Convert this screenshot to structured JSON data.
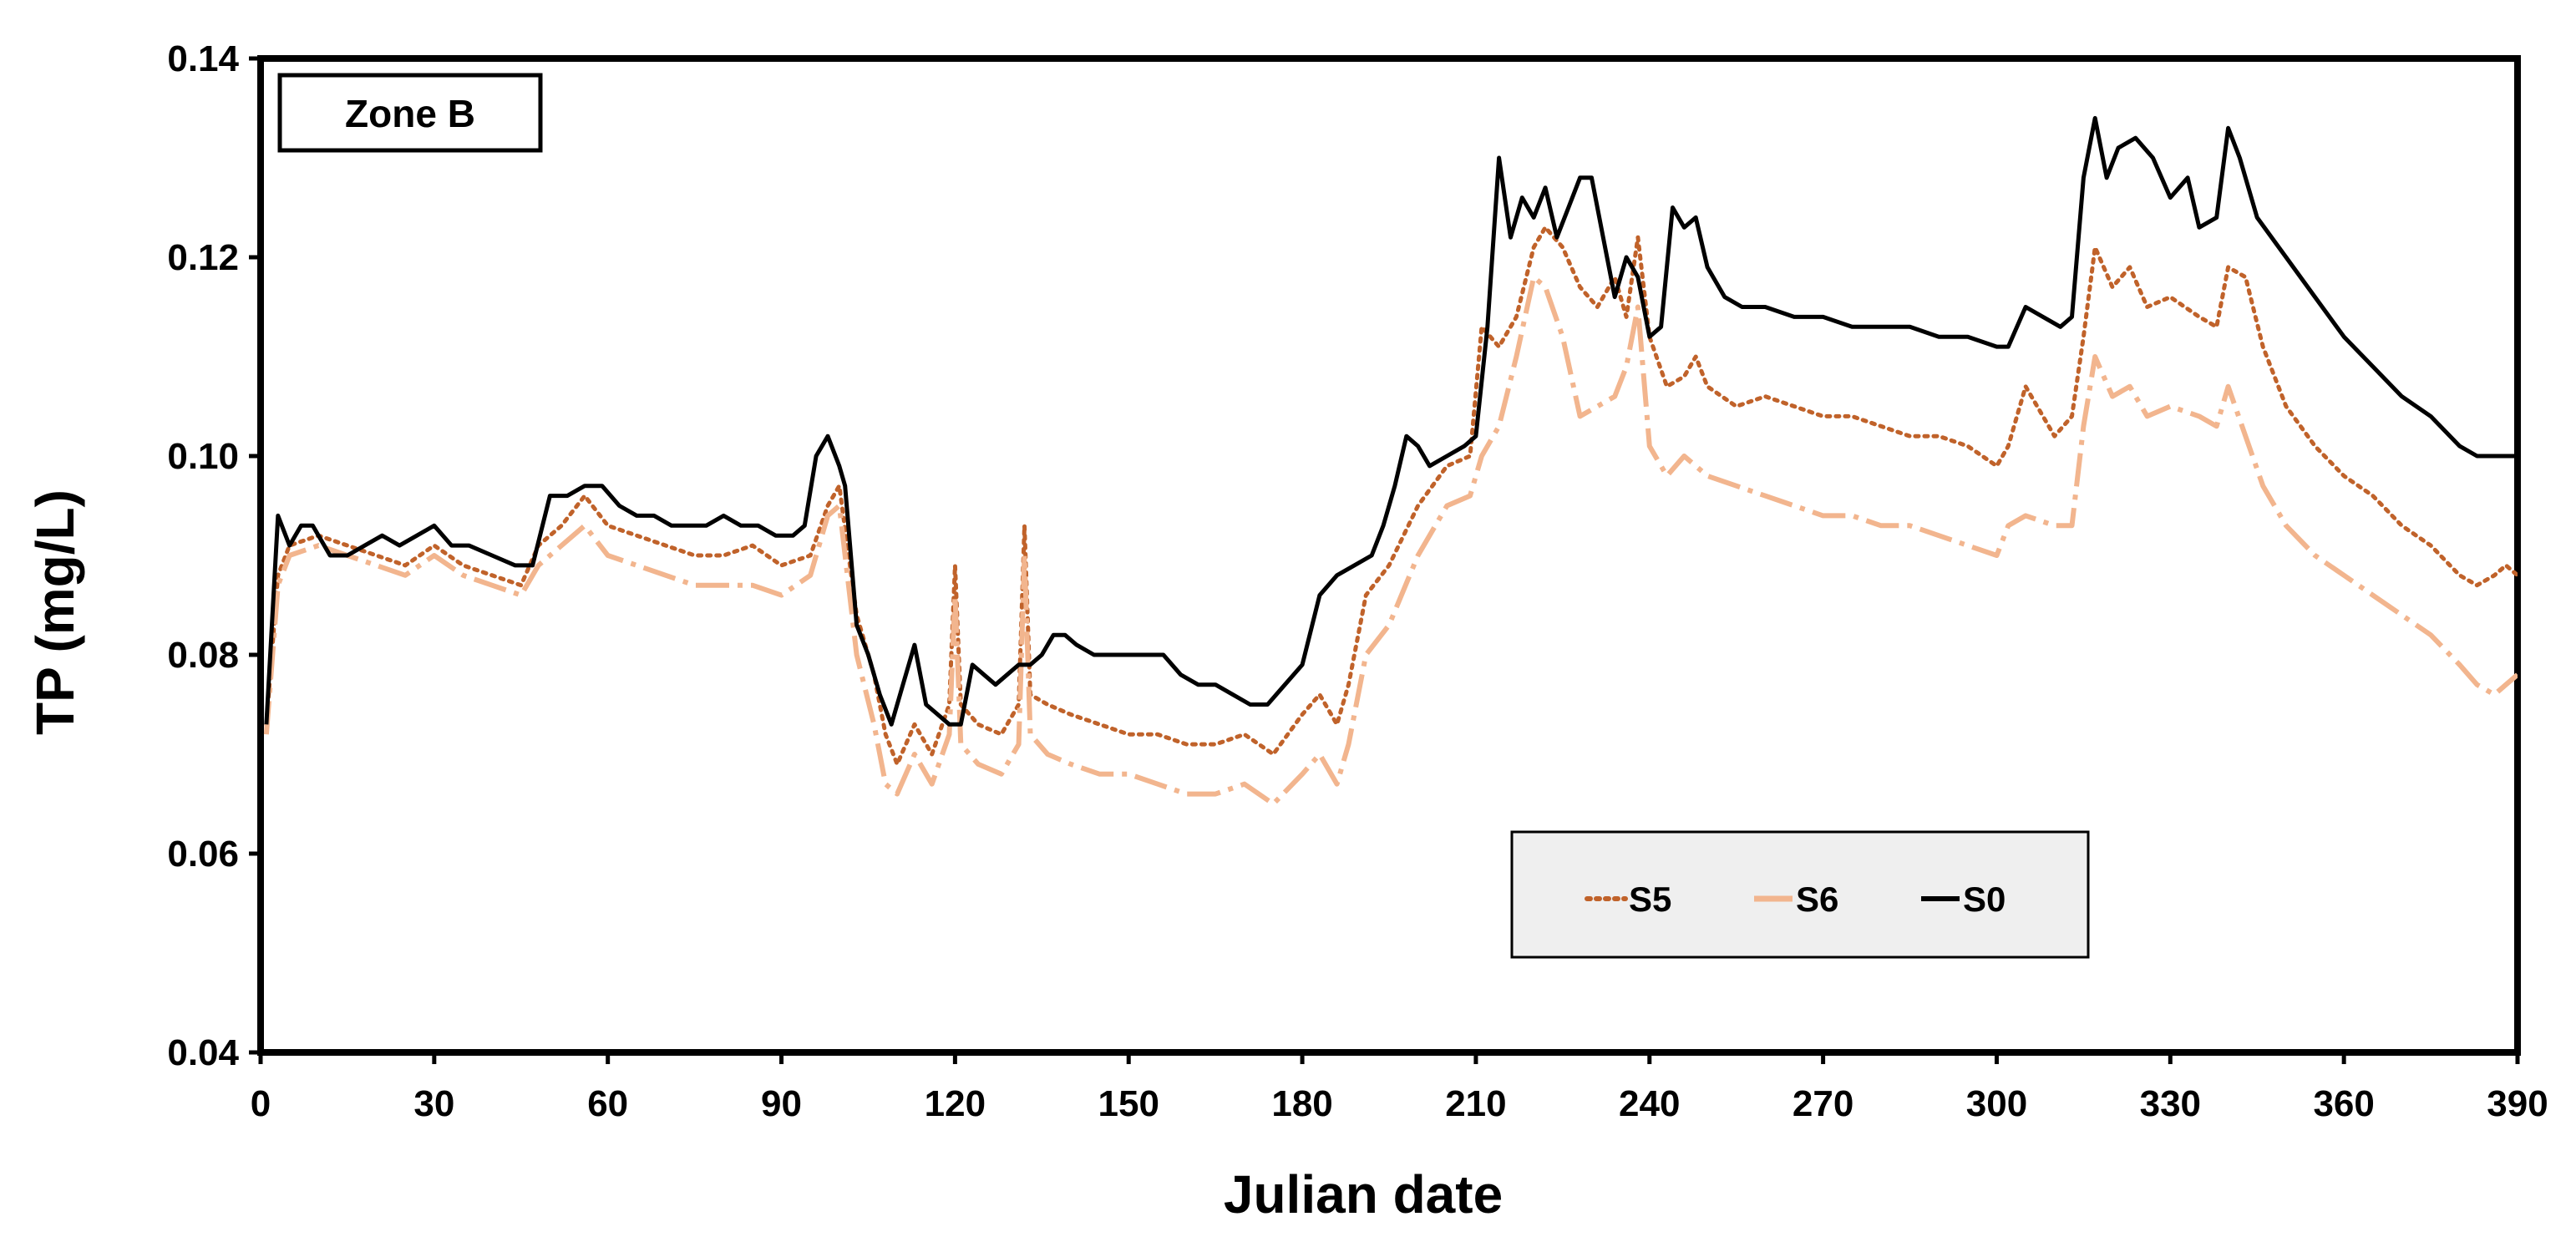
{
  "chart_data": {
    "type": "line",
    "xlabel": "Julian date",
    "ylabel": "TP (mg/L)",
    "annotation": "Zone B",
    "xlim": [
      0,
      390
    ],
    "ylim": [
      0.04,
      0.14
    ],
    "xticks": [
      0,
      30,
      60,
      90,
      120,
      150,
      180,
      210,
      240,
      270,
      300,
      330,
      360,
      390
    ],
    "yticks": [
      "0.04",
      "0.06",
      "0.08",
      "0.10",
      "0.12",
      "0.14"
    ],
    "legend_position": "bottom-right",
    "grid": false,
    "series": [
      {
        "name": "S5",
        "color": "#C0622A",
        "style": "dotted",
        "x": [
          1,
          3,
          5,
          10,
          15,
          20,
          25,
          30,
          35,
          40,
          45,
          48,
          52,
          56,
          60,
          65,
          70,
          75,
          80,
          85,
          90,
          95,
          98,
          100,
          103,
          106,
          108,
          110,
          113,
          116,
          119,
          120,
          121,
          124,
          128,
          131,
          132,
          133,
          136,
          140,
          145,
          150,
          155,
          160,
          165,
          170,
          175,
          180,
          183,
          186,
          188,
          191,
          195,
          200,
          205,
          209,
          211,
          214,
          217,
          220,
          222,
          225,
          228,
          231,
          234,
          236,
          238,
          240,
          243,
          246,
          248,
          250,
          255,
          260,
          265,
          270,
          275,
          280,
          285,
          290,
          295,
          300,
          302,
          305,
          310,
          313,
          315,
          317,
          320,
          323,
          326,
          330,
          335,
          338,
          340,
          343,
          346,
          350,
          355,
          360,
          365,
          370,
          375,
          380,
          383,
          386,
          388,
          390
        ],
        "y": [
          0.073,
          0.088,
          0.091,
          0.092,
          0.091,
          0.09,
          0.089,
          0.091,
          0.089,
          0.088,
          0.087,
          0.091,
          0.093,
          0.096,
          0.093,
          0.092,
          0.091,
          0.09,
          0.09,
          0.091,
          0.089,
          0.09,
          0.095,
          0.097,
          0.084,
          0.078,
          0.072,
          0.069,
          0.073,
          0.07,
          0.075,
          0.089,
          0.075,
          0.073,
          0.072,
          0.075,
          0.093,
          0.076,
          0.075,
          0.074,
          0.073,
          0.072,
          0.072,
          0.071,
          0.071,
          0.072,
          0.07,
          0.074,
          0.076,
          0.073,
          0.077,
          0.086,
          0.089,
          0.095,
          0.099,
          0.1,
          0.113,
          0.111,
          0.114,
          0.121,
          0.123,
          0.121,
          0.117,
          0.115,
          0.118,
          0.114,
          0.122,
          0.112,
          0.107,
          0.108,
          0.11,
          0.107,
          0.105,
          0.106,
          0.105,
          0.104,
          0.104,
          0.103,
          0.102,
          0.102,
          0.101,
          0.099,
          0.101,
          0.107,
          0.102,
          0.104,
          0.112,
          0.121,
          0.117,
          0.119,
          0.115,
          0.116,
          0.114,
          0.113,
          0.119,
          0.118,
          0.111,
          0.105,
          0.101,
          0.098,
          0.096,
          0.093,
          0.091,
          0.088,
          0.087,
          0.088,
          0.089,
          0.088
        ]
      },
      {
        "name": "S6",
        "color": "#F2B58E",
        "style": "dashed",
        "x": [
          1,
          3,
          5,
          10,
          15,
          20,
          25,
          30,
          35,
          40,
          45,
          48,
          52,
          56,
          60,
          65,
          70,
          75,
          80,
          85,
          90,
          95,
          98,
          100,
          103,
          106,
          108,
          110,
          113,
          116,
          119,
          120,
          121,
          124,
          128,
          131,
          132,
          133,
          136,
          140,
          145,
          150,
          155,
          160,
          165,
          170,
          175,
          180,
          183,
          186,
          188,
          191,
          195,
          200,
          205,
          209,
          211,
          214,
          217,
          220,
          222,
          225,
          228,
          231,
          234,
          236,
          238,
          240,
          243,
          246,
          248,
          250,
          255,
          260,
          265,
          270,
          275,
          280,
          285,
          290,
          295,
          300,
          302,
          305,
          310,
          313,
          315,
          317,
          320,
          323,
          326,
          330,
          335,
          338,
          340,
          343,
          346,
          350,
          355,
          360,
          365,
          370,
          375,
          380,
          383,
          386,
          388,
          390
        ],
        "y": [
          0.072,
          0.087,
          0.09,
          0.091,
          0.09,
          0.089,
          0.088,
          0.09,
          0.088,
          0.087,
          0.086,
          0.089,
          0.091,
          0.093,
          0.09,
          0.089,
          0.088,
          0.087,
          0.087,
          0.087,
          0.086,
          0.088,
          0.094,
          0.095,
          0.08,
          0.073,
          0.067,
          0.066,
          0.07,
          0.067,
          0.072,
          0.086,
          0.071,
          0.069,
          0.068,
          0.071,
          0.09,
          0.072,
          0.07,
          0.069,
          0.068,
          0.068,
          0.067,
          0.066,
          0.066,
          0.067,
          0.065,
          0.068,
          0.07,
          0.067,
          0.071,
          0.08,
          0.083,
          0.09,
          0.095,
          0.096,
          0.1,
          0.103,
          0.11,
          0.118,
          0.117,
          0.112,
          0.104,
          0.105,
          0.106,
          0.109,
          0.115,
          0.101,
          0.098,
          0.1,
          0.099,
          0.098,
          0.097,
          0.096,
          0.095,
          0.094,
          0.094,
          0.093,
          0.093,
          0.092,
          0.091,
          0.09,
          0.093,
          0.094,
          0.093,
          0.093,
          0.103,
          0.11,
          0.106,
          0.107,
          0.104,
          0.105,
          0.104,
          0.103,
          0.107,
          0.102,
          0.097,
          0.093,
          0.09,
          0.088,
          0.086,
          0.084,
          0.082,
          0.079,
          0.077,
          0.076,
          0.077,
          0.078
        ]
      },
      {
        "name": "S0",
        "color": "#000000",
        "style": "solid",
        "x": [
          1,
          3,
          5,
          7,
          9,
          12,
          15,
          18,
          21,
          24,
          27,
          30,
          33,
          36,
          40,
          44,
          47,
          50,
          53,
          56,
          59,
          62,
          65,
          68,
          71,
          74,
          77,
          80,
          83,
          86,
          89,
          92,
          94,
          96,
          98,
          100,
          101,
          103,
          105,
          107,
          109,
          111,
          113,
          115,
          117,
          119,
          121,
          123,
          125,
          127,
          129,
          131,
          133,
          135,
          137,
          139,
          141,
          144,
          147,
          150,
          153,
          156,
          159,
          162,
          165,
          168,
          171,
          174,
          177,
          180,
          183,
          186,
          189,
          192,
          194,
          196,
          198,
          200,
          202,
          205,
          208,
          210,
          212,
          214,
          216,
          218,
          220,
          222,
          224,
          226,
          228,
          230,
          232,
          234,
          236,
          238,
          240,
          242,
          244,
          246,
          248,
          250,
          253,
          256,
          260,
          265,
          270,
          275,
          280,
          285,
          290,
          295,
          300,
          302,
          305,
          308,
          311,
          313,
          315,
          317,
          319,
          321,
          324,
          327,
          330,
          333,
          335,
          338,
          340,
          342,
          345,
          350,
          355,
          360,
          365,
          370,
          375,
          380,
          383,
          386,
          388,
          390
        ],
        "y": [
          0.073,
          0.094,
          0.091,
          0.093,
          0.093,
          0.09,
          0.09,
          0.091,
          0.092,
          0.091,
          0.092,
          0.093,
          0.091,
          0.091,
          0.09,
          0.089,
          0.089,
          0.096,
          0.096,
          0.097,
          0.097,
          0.095,
          0.094,
          0.094,
          0.093,
          0.093,
          0.093,
          0.094,
          0.093,
          0.093,
          0.092,
          0.092,
          0.093,
          0.1,
          0.102,
          0.099,
          0.097,
          0.083,
          0.08,
          0.076,
          0.073,
          0.077,
          0.081,
          0.075,
          0.074,
          0.073,
          0.073,
          0.079,
          0.078,
          0.077,
          0.078,
          0.079,
          0.079,
          0.08,
          0.082,
          0.082,
          0.081,
          0.08,
          0.08,
          0.08,
          0.08,
          0.08,
          0.078,
          0.077,
          0.077,
          0.076,
          0.075,
          0.075,
          0.077,
          0.079,
          0.086,
          0.088,
          0.089,
          0.09,
          0.093,
          0.097,
          0.102,
          0.101,
          0.099,
          0.1,
          0.101,
          0.102,
          0.113,
          0.13,
          0.122,
          0.126,
          0.124,
          0.127,
          0.122,
          0.125,
          0.128,
          0.128,
          0.122,
          0.116,
          0.12,
          0.118,
          0.112,
          0.113,
          0.125,
          0.123,
          0.124,
          0.119,
          0.116,
          0.115,
          0.115,
          0.114,
          0.114,
          0.113,
          0.113,
          0.113,
          0.112,
          0.112,
          0.111,
          0.111,
          0.115,
          0.114,
          0.113,
          0.114,
          0.128,
          0.134,
          0.128,
          0.131,
          0.132,
          0.13,
          0.126,
          0.128,
          0.123,
          0.124,
          0.133,
          0.13,
          0.124,
          0.12,
          0.116,
          0.112,
          0.109,
          0.106,
          0.104,
          0.101,
          0.1,
          0.1,
          0.1,
          0.1
        ]
      }
    ]
  }
}
